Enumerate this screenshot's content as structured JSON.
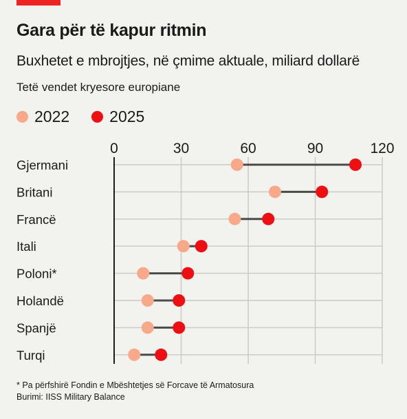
{
  "colors": {
    "accent": "#ee2424",
    "dot_2022": "#f8a98a",
    "dot_2025": "#ee0f12",
    "connector": "#4a4a4a",
    "grid": "#c9c9c4",
    "axis": "#1a1a1a"
  },
  "chart_data": {
    "type": "dot-plot",
    "title": "Gara për të kapur ritmin",
    "subtitle": "Buxhetet e mbrojtjes, në çmime aktuale, miliard dollarë",
    "subsubtitle": "Tetë vendet kryesore europiane",
    "legend": [
      "2022",
      "2025"
    ],
    "legend_position": "top-left",
    "x_ticks": [
      0,
      30,
      60,
      90,
      120
    ],
    "xlim": [
      0,
      120
    ],
    "grid": true,
    "categories": [
      "Gjermani",
      "Britani",
      "Francë",
      "Itali",
      "Poloni*",
      "Holandë",
      "Spanjë",
      "Turqi"
    ],
    "series": [
      {
        "name": "2022",
        "values": [
          55,
          72,
          54,
          31,
          13,
          15,
          15,
          9
        ]
      },
      {
        "name": "2025",
        "values": [
          108,
          93,
          69,
          39,
          33,
          29,
          29,
          21
        ]
      }
    ],
    "footnote": "* Pa përfshirë Fondin e Mbështetjes së Forcave të Armatosura",
    "source": "Burimi: IISS Military Balance"
  }
}
